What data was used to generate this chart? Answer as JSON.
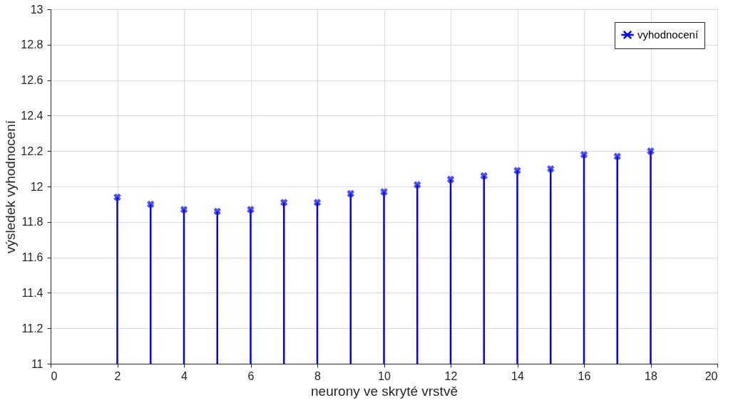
{
  "chart_data": {
    "type": "lollipop",
    "xlabel": "neurony ve skryté vrstvě",
    "ylabel": "výsledek vyhodnocení",
    "x": [
      2,
      3,
      4,
      5,
      6,
      7,
      8,
      9,
      10,
      11,
      12,
      13,
      14,
      15,
      16,
      17,
      18
    ],
    "series": [
      {
        "name": "vyhodnocení",
        "color": "#0000ff",
        "values": [
          11.94,
          11.9,
          11.87,
          11.86,
          11.87,
          11.91,
          11.91,
          11.96,
          11.97,
          12.01,
          12.04,
          12.06,
          12.09,
          12.1,
          12.18,
          12.17,
          12.2
        ]
      }
    ],
    "xlim": [
      0,
      20
    ],
    "xticks": [
      0,
      2,
      4,
      6,
      8,
      10,
      12,
      14,
      16,
      18,
      20
    ],
    "ylim": [
      11,
      13
    ],
    "yticks": [
      11,
      11.2,
      11.4,
      11.6,
      11.8,
      12,
      12.2,
      12.4,
      12.6,
      12.8,
      13
    ],
    "grid": true,
    "legend": "top right",
    "marker": "cross"
  }
}
